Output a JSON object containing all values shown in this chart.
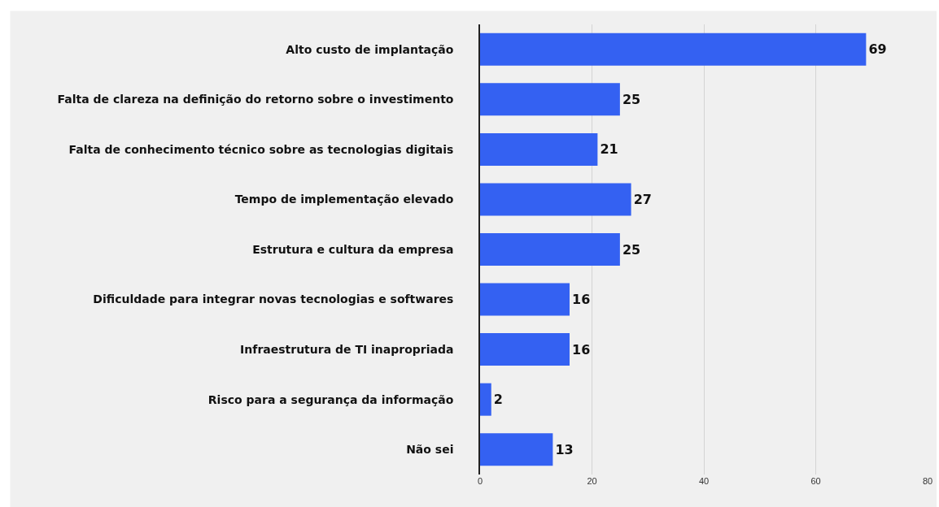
{
  "chart_data": {
    "type": "bar",
    "orientation": "horizontal",
    "categories": [
      "Alto custo de implantação",
      "Falta de clareza na definição do retorno sobre o investimento",
      "Falta de conhecimento técnico sobre as tecnologias digitais",
      "Tempo de implementação elevado",
      "Estrutura e cultura da empresa",
      "Dificuldade para integrar novas tecnologias e softwares",
      "Infraestrutura de TI inapropriada",
      "Risco para a segurança da informação",
      "Não sei"
    ],
    "values": [
      69,
      25,
      21,
      27,
      25,
      16,
      16,
      2,
      13
    ],
    "color": "#3461f2",
    "xlim": [
      0,
      80
    ],
    "xticks": [
      0,
      20,
      40,
      60,
      80
    ],
    "grid": "x",
    "data_labels": true,
    "legend": false
  }
}
